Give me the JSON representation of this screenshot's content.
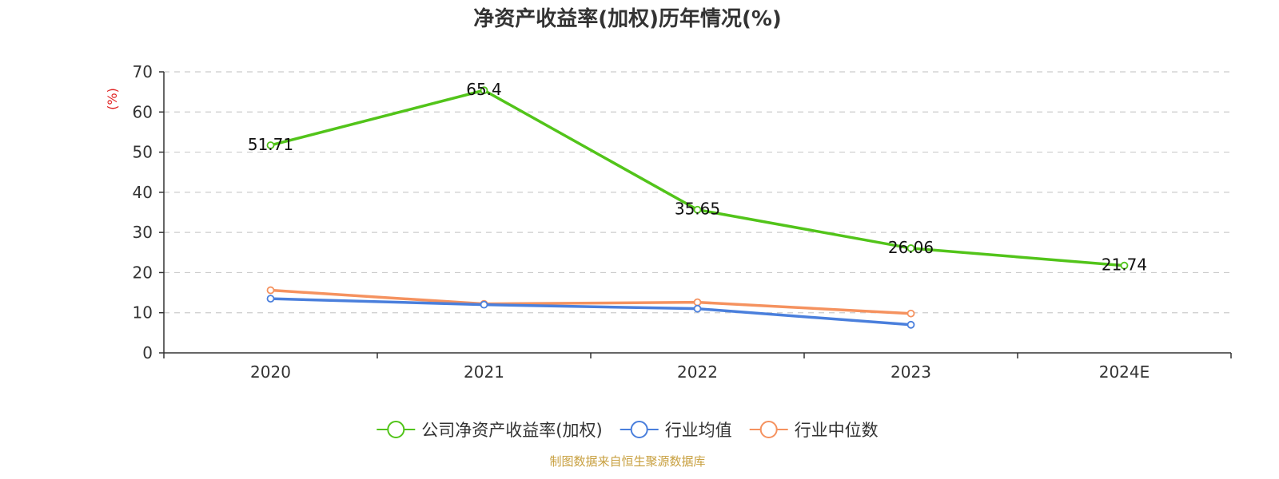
{
  "chart_data": {
    "type": "line",
    "title": "净资产收益率(加权)历年情况(%)",
    "ylabel": "(%)",
    "categories": [
      "2020",
      "2021",
      "2022",
      "2023",
      "2024E"
    ],
    "ylim": [
      0,
      70
    ],
    "yticks": [
      0,
      10,
      20,
      30,
      40,
      50,
      60,
      70
    ],
    "grid": true,
    "legend_position": "bottom",
    "series": [
      {
        "name": "公司净资产收益率(加权)",
        "color": "#52c41a",
        "values": [
          51.71,
          65.4,
          35.65,
          26.06,
          21.74
        ],
        "labels": [
          "51.71",
          "65.4",
          "35.65",
          "26.06",
          "21.74"
        ]
      },
      {
        "name": "行业均值",
        "color": "#4a7fdc",
        "values": [
          13.5,
          12.0,
          11.0,
          7.0,
          null
        ]
      },
      {
        "name": "行业中位数",
        "color": "#f5925f",
        "values": [
          15.6,
          12.2,
          12.6,
          9.8,
          null
        ]
      }
    ]
  },
  "colors": {
    "unit_label": "#e02020",
    "source": "#c8a040",
    "axis": "#333333",
    "grid": "#cccccc"
  },
  "source": "制图数据来自恒生聚源数据库"
}
